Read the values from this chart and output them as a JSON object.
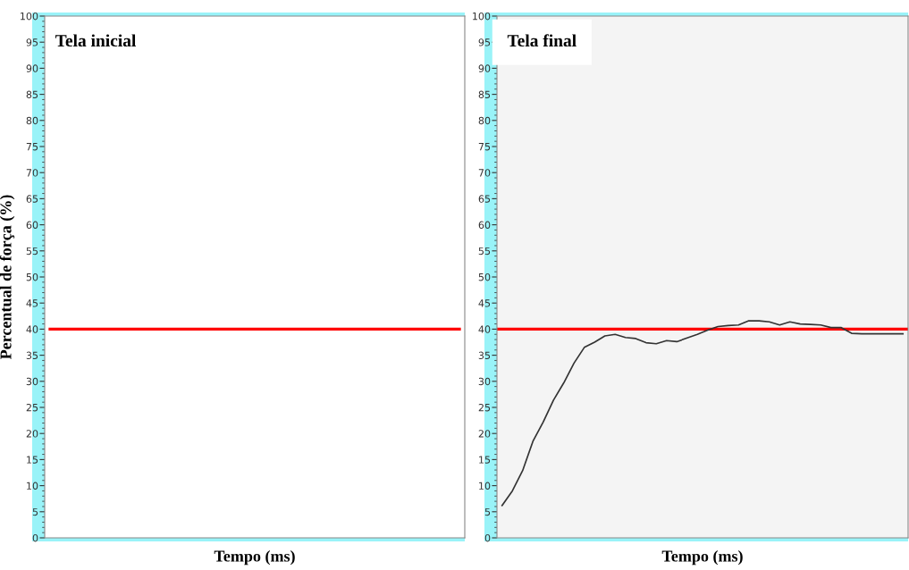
{
  "chart_data": [
    {
      "type": "line",
      "xlabel": "Tempo (ms)",
      "ylabel": "Percentual de força (%)",
      "annotations": [
        "Tela inicial"
      ],
      "ylim": [
        0,
        100
      ],
      "yticks": [
        0,
        5,
        10,
        15,
        20,
        25,
        30,
        35,
        40,
        45,
        50,
        55,
        60,
        65,
        70,
        75,
        80,
        85,
        90,
        95,
        100
      ],
      "categories": [
        null,
        null,
        null,
        null,
        null,
        null,
        null,
        null,
        null,
        null,
        null,
        null,
        null,
        null,
        null,
        null,
        null,
        null,
        null,
        null,
        null,
        null,
        null,
        null,
        null,
        null,
        null,
        null,
        null,
        null,
        null,
        null,
        null,
        null,
        null,
        null,
        null,
        null,
        null,
        null
      ],
      "series": [
        {
          "color": "#ff0000",
          "values": [
            40,
            40,
            40,
            40,
            40,
            40,
            40,
            40,
            40,
            40,
            40,
            40,
            40,
            40,
            40,
            40,
            40,
            40,
            40,
            40,
            40,
            40,
            40,
            40,
            40,
            40,
            40,
            40,
            40,
            40,
            40,
            40,
            40,
            40,
            40,
            40,
            40,
            40,
            40,
            40
          ]
        }
      ]
    },
    {
      "type": "line",
      "xlabel": "Tempo (ms)",
      "annotations": [
        "Tela final"
      ],
      "ylim": [
        0,
        100
      ],
      "yticks": [
        0,
        5,
        10,
        15,
        20,
        25,
        30,
        35,
        40,
        45,
        50,
        55,
        60,
        65,
        70,
        75,
        80,
        85,
        90,
        95,
        100
      ],
      "ref_lines": [
        {
          "axis": "y",
          "value": 40,
          "color": "#ff0000"
        }
      ],
      "categories": [
        null,
        null,
        null,
        null,
        null,
        null,
        null,
        null,
        null,
        null,
        null,
        null,
        null,
        null,
        null,
        null,
        null,
        null,
        null,
        null,
        null,
        null,
        null,
        null,
        null,
        null,
        null,
        null,
        null,
        null,
        null,
        null,
        null,
        null,
        null,
        null,
        null,
        null,
        null,
        null
      ],
      "series": [
        {
          "color": "#333333",
          "values": [
            6.2,
            9.0,
            12.9,
            18.5,
            22.2,
            26.4,
            29.7,
            33.5,
            36.5,
            37.5,
            38.7,
            39.0,
            38.4,
            38.2,
            37.4,
            37.2,
            37.8,
            37.6,
            38.3,
            39.0,
            39.8,
            40.5,
            40.7,
            40.8,
            41.6,
            41.6,
            41.4,
            40.8,
            41.4,
            41.0,
            40.9,
            40.8,
            40.3,
            40.3,
            39.2,
            39.1,
            39.1,
            39.1,
            39.1,
            39.1
          ]
        }
      ]
    }
  ]
}
